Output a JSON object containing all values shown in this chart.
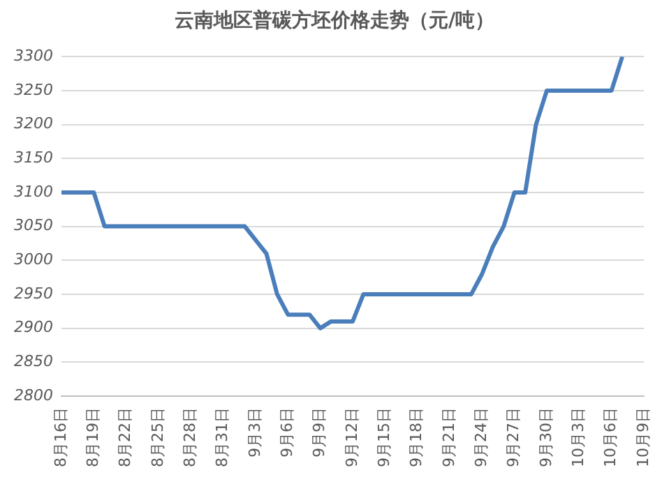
{
  "chart_data": {
    "type": "line",
    "title": "云南地区普碳方坯价格走势（元/吨）",
    "categories": [
      "8月16日",
      null,
      null,
      "8月19日",
      null,
      null,
      "8月22日",
      null,
      null,
      "8月25日",
      null,
      null,
      "8月28日",
      null,
      null,
      "8月31日",
      null,
      null,
      "9月3日",
      null,
      null,
      "9月6日",
      null,
      null,
      "9月9日",
      null,
      null,
      "9月12日",
      null,
      null,
      "9月15日",
      null,
      null,
      "9月18日",
      null,
      null,
      "9月21日",
      null,
      null,
      "9月24日",
      null,
      null,
      "9月27日",
      null,
      null,
      "9月30日",
      null,
      null,
      "10月3日",
      null,
      null,
      "10月6日",
      null,
      null,
      "10月9日"
    ],
    "series": [
      {
        "color": "#4a7ebb",
        "values": [
          3100,
          3100,
          3100,
          3100,
          3050,
          3050,
          3050,
          3050,
          3050,
          3050,
          3050,
          3050,
          3050,
          3050,
          3050,
          3050,
          3050,
          3050,
          3030,
          3010,
          2950,
          2920,
          2920,
          2920,
          2900,
          2910,
          2910,
          2910,
          2950,
          2950,
          2950,
          2950,
          2950,
          2950,
          2950,
          2950,
          2950,
          2950,
          2950,
          2980,
          3020,
          3050,
          3100,
          3100,
          3200,
          3250,
          3250,
          3250,
          3250,
          3250,
          3250,
          3250,
          3300,
          null,
          null
        ]
      }
    ],
    "ylim": [
      2800,
      3300
    ],
    "yticks": [
      2800,
      2850,
      2900,
      2950,
      3000,
      3050,
      3100,
      3150,
      3200,
      3250,
      3300
    ],
    "grid": "y",
    "legend": false,
    "marker": "none",
    "line_style": "solid"
  }
}
